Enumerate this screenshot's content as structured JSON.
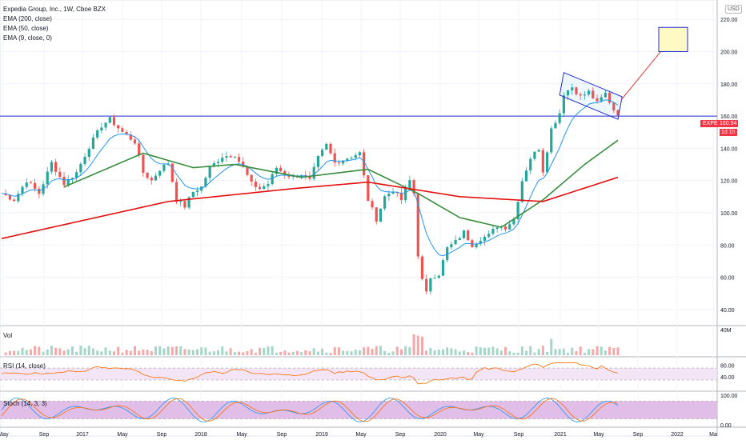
{
  "legend": {
    "title": "Expedia Group, Inc., 1W, Cboe BZX",
    "ema200": "EMA (200, close)",
    "ema50": "EMA (50, close)",
    "ema9": "EMA (9, close, 0)"
  },
  "currency": "USD",
  "ticker": "EXPE",
  "last_price": "160.94",
  "time_left": "1d 1h",
  "panes": {
    "vol": "Vol",
    "rsi": "RSI (14, close)",
    "stoch": "Stoch (14, 3, 3)"
  },
  "colors": {
    "up": "#26a69a",
    "down": "#ef5350",
    "ema200": "#e50e0e",
    "ema50": "#388e3c",
    "ema9": "#2196f3",
    "level": "#1e2bd6",
    "target": "#fff9c4",
    "arrow": "#e53935",
    "rsi": "#ff6d00",
    "stoch_k": "#2196f3",
    "stoch_d": "#ff6d00"
  },
  "chart_data": [
    {
      "type": "candlestick",
      "title": "Expedia Group, Inc., 1W, Cboe BZX",
      "x_tick_labels": [
        "May",
        "Sep",
        "2017",
        "May",
        "Sep",
        "2018",
        "May",
        "Sep",
        "2019",
        "May",
        "Sep",
        "2020",
        "May",
        "Sep",
        "2021",
        "May",
        "Sep",
        "2022",
        "Ma"
      ],
      "y_tick_labels": [
        "40.00",
        "60.00",
        "80.00",
        "100.00",
        "120.00",
        "140.00",
        "160.00",
        "180.00",
        "200.00",
        "220.00"
      ],
      "ylim": [
        30,
        232
      ],
      "horizontal_level": 160,
      "target_zone": [
        200,
        215
      ],
      "close_series": [
        {
          "t": 0,
          "c": 112
        },
        {
          "t": 3,
          "c": 108
        },
        {
          "t": 6,
          "c": 120
        },
        {
          "t": 9,
          "c": 112
        },
        {
          "t": 12,
          "c": 131
        },
        {
          "t": 15,
          "c": 118
        },
        {
          "t": 18,
          "c": 125
        },
        {
          "t": 21,
          "c": 141
        },
        {
          "t": 24,
          "c": 154
        },
        {
          "t": 26,
          "c": 158
        },
        {
          "t": 29,
          "c": 150
        },
        {
          "t": 32,
          "c": 144
        },
        {
          "t": 34,
          "c": 125
        },
        {
          "t": 36,
          "c": 120
        },
        {
          "t": 38,
          "c": 127
        },
        {
          "t": 40,
          "c": 131
        },
        {
          "t": 42,
          "c": 108
        },
        {
          "t": 44,
          "c": 104
        },
        {
          "t": 46,
          "c": 113
        },
        {
          "t": 48,
          "c": 116
        },
        {
          "t": 50,
          "c": 128
        },
        {
          "t": 53,
          "c": 135
        },
        {
          "t": 56,
          "c": 136
        },
        {
          "t": 58,
          "c": 128
        },
        {
          "t": 60,
          "c": 118
        },
        {
          "t": 62,
          "c": 115
        },
        {
          "t": 64,
          "c": 118
        },
        {
          "t": 66,
          "c": 128
        },
        {
          "t": 68,
          "c": 124
        },
        {
          "t": 70,
          "c": 122
        },
        {
          "t": 72,
          "c": 124
        },
        {
          "t": 74,
          "c": 120
        },
        {
          "t": 76,
          "c": 134
        },
        {
          "t": 78,
          "c": 142
        },
        {
          "t": 80,
          "c": 131
        },
        {
          "t": 83,
          "c": 134
        },
        {
          "t": 86,
          "c": 137
        },
        {
          "t": 88,
          "c": 108
        },
        {
          "t": 90,
          "c": 96
        },
        {
          "t": 92,
          "c": 110
        },
        {
          "t": 94,
          "c": 114
        },
        {
          "t": 96,
          "c": 108
        },
        {
          "t": 98,
          "c": 120
        },
        {
          "t": 99,
          "c": 112
        },
        {
          "t": 100,
          "c": 74
        },
        {
          "t": 101,
          "c": 58
        },
        {
          "t": 102,
          "c": 50
        },
        {
          "t": 103,
          "c": 60
        },
        {
          "t": 105,
          "c": 62
        },
        {
          "t": 107,
          "c": 78
        },
        {
          "t": 109,
          "c": 82
        },
        {
          "t": 111,
          "c": 88
        },
        {
          "t": 113,
          "c": 80
        },
        {
          "t": 115,
          "c": 84
        },
        {
          "t": 117,
          "c": 86
        },
        {
          "t": 119,
          "c": 92
        },
        {
          "t": 121,
          "c": 91
        },
        {
          "t": 123,
          "c": 96
        },
        {
          "t": 125,
          "c": 120
        },
        {
          "t": 127,
          "c": 134
        },
        {
          "t": 129,
          "c": 140
        },
        {
          "t": 130,
          "c": 126
        },
        {
          "t": 132,
          "c": 152
        },
        {
          "t": 134,
          "c": 162
        },
        {
          "t": 135,
          "c": 174
        },
        {
          "t": 137,
          "c": 178
        },
        {
          "t": 139,
          "c": 172
        },
        {
          "t": 141,
          "c": 175
        },
        {
          "t": 143,
          "c": 168
        },
        {
          "t": 145,
          "c": 174
        },
        {
          "t": 147,
          "c": 164
        },
        {
          "t": 148,
          "c": 160.94
        }
      ],
      "ema200": [
        {
          "t": 0,
          "v": 84
        },
        {
          "t": 40,
          "v": 107
        },
        {
          "t": 70,
          "v": 115
        },
        {
          "t": 88,
          "v": 119
        },
        {
          "t": 110,
          "v": 110
        },
        {
          "t": 130,
          "v": 107
        },
        {
          "t": 148,
          "v": 122
        }
      ],
      "ema50": [
        {
          "t": 15,
          "v": 116
        },
        {
          "t": 34,
          "v": 137
        },
        {
          "t": 46,
          "v": 128
        },
        {
          "t": 56,
          "v": 130
        },
        {
          "t": 72,
          "v": 122
        },
        {
          "t": 88,
          "v": 127
        },
        {
          "t": 100,
          "v": 112
        },
        {
          "t": 110,
          "v": 97
        },
        {
          "t": 120,
          "v": 91
        },
        {
          "t": 130,
          "v": 108
        },
        {
          "t": 140,
          "v": 130
        },
        {
          "t": 148,
          "v": 145
        }
      ]
    },
    {
      "type": "bar",
      "title": "Vol",
      "y_tick_labels": [
        "40M"
      ]
    },
    {
      "type": "line",
      "title": "RSI (14, close)",
      "y_tick_labels": [
        "80.00",
        "40.00"
      ],
      "ylim": [
        0,
        100
      ]
    },
    {
      "type": "line",
      "title": "Stoch (14, 3, 3)",
      "y_tick_labels": [
        "100.00",
        "0.00"
      ],
      "ylim": [
        0,
        100
      ]
    }
  ]
}
